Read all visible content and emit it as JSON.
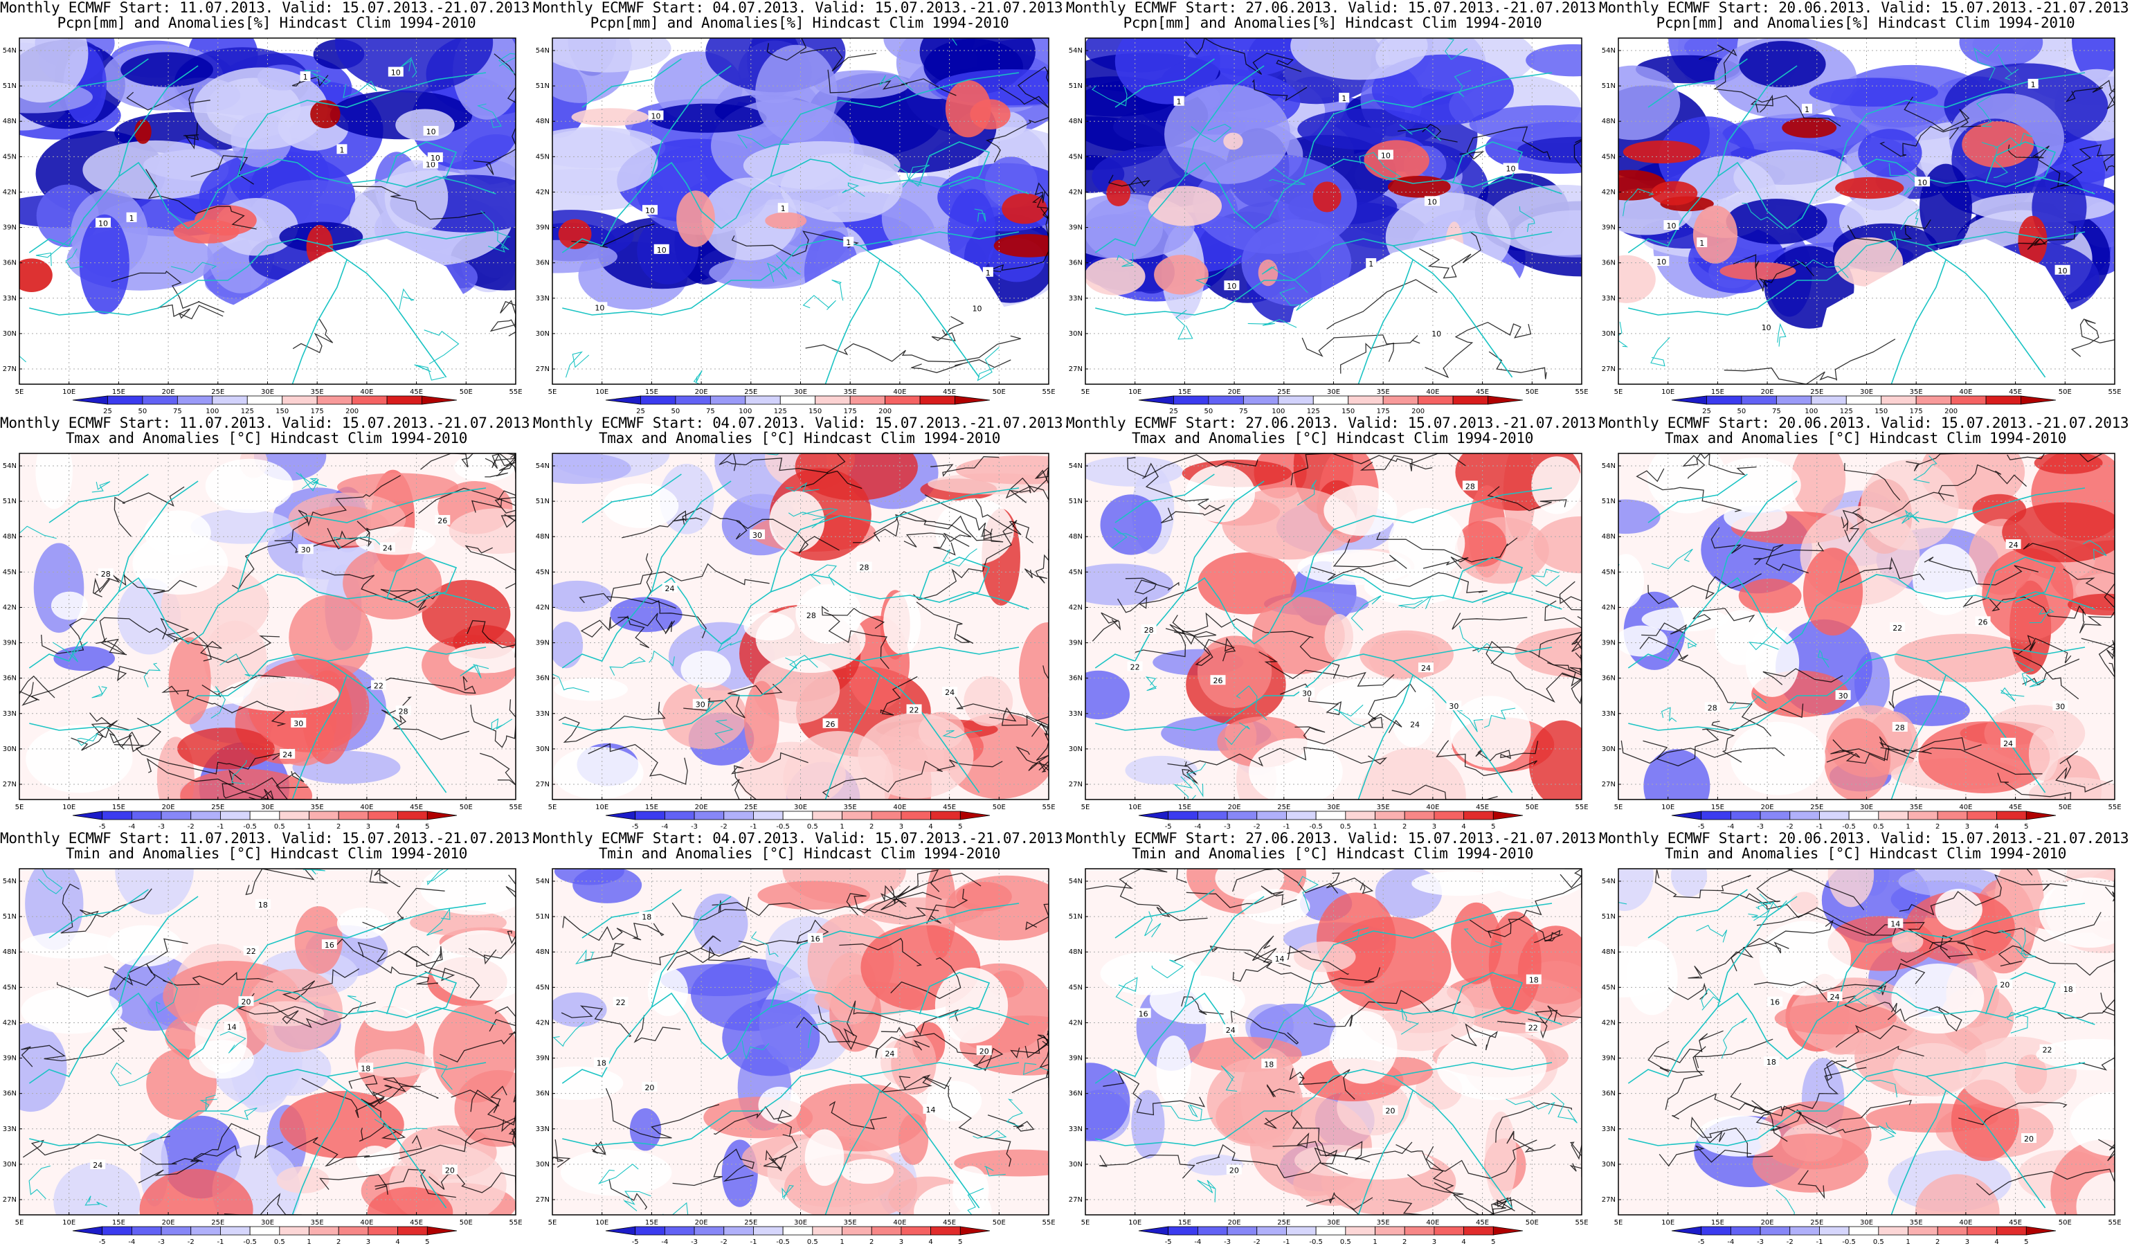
{
  "rows": [
    {
      "title2": "Pcpn[mm] and Anomalies[%] Hindcast Clim 1994-2010",
      "variable": "precip",
      "colorbar": {
        "labels": [
          "25",
          "50",
          "75",
          "100",
          "125",
          "150",
          "175",
          "200"
        ],
        "colors": [
          "#1c1cc8",
          "#3b3bef",
          "#6262f5",
          "#9a9af8",
          "#d2d2fc",
          "#ffffff",
          "#fcd2d2",
          "#f89a9a",
          "#f56262",
          "#d91c1c",
          "#b00000"
        ]
      }
    },
    {
      "title2": "Tmax and Anomalies [°C] Hindcast Clim 1994-2010",
      "variable": "tmax",
      "colorbar": {
        "labels": [
          "-5",
          "-4",
          "-3",
          "-2",
          "-1",
          "-0.5",
          "0.5",
          "1",
          "2",
          "3",
          "4",
          "5"
        ],
        "colors": [
          "#1c1cc8",
          "#3b3bef",
          "#6262f5",
          "#8787f7",
          "#b0b0fa",
          "#d6d6fc",
          "#ffffff",
          "#fcd6d6",
          "#fab0b0",
          "#f78787",
          "#f56262",
          "#e12c2c",
          "#b00000"
        ]
      }
    },
    {
      "title2": "Tmin and Anomalies [°C] Hindcast Clim 1994-2010",
      "variable": "tmin",
      "colorbar": {
        "labels": [
          "-5",
          "-4",
          "-3",
          "-2",
          "-1",
          "-0.5",
          "0.5",
          "1",
          "2",
          "3",
          "4",
          "5"
        ],
        "colors": [
          "#1c1cc8",
          "#3b3bef",
          "#6262f5",
          "#8787f7",
          "#b0b0fa",
          "#d6d6fc",
          "#ffffff",
          "#fcd6d6",
          "#fab0b0",
          "#f78787",
          "#f56262",
          "#e12c2c",
          "#b00000"
        ]
      }
    }
  ],
  "columns": [
    {
      "title1": "Monthly ECMWF Start: 11.07.2013. Valid: 15.07.2013.-21.07.2013."
    },
    {
      "title1": "Monthly ECMWF Start: 04.07.2013. Valid: 15.07.2013.-21.07.2013."
    },
    {
      "title1": "Monthly ECMWF Start: 27.06.2013. Valid: 15.07.2013.-21.07.2013."
    },
    {
      "title1": "Monthly ECMWF Start: 20.06.2013. Valid: 15.07.2013.-21.07.2013."
    }
  ],
  "axes": {
    "lat_labels": [
      "54N",
      "51N",
      "48N",
      "45N",
      "42N",
      "39N",
      "36N",
      "33N",
      "30N",
      "27N"
    ],
    "lon_labels": [
      "5E",
      "10E",
      "15E",
      "20E",
      "25E",
      "30E",
      "35E",
      "40E",
      "45E",
      "50E",
      "55E"
    ]
  },
  "contour_labels": {
    "precip": [
      "10",
      "10",
      "1",
      "10",
      "10",
      "1",
      "1",
      "10"
    ],
    "tmax": [
      "24",
      "28",
      "30",
      "24",
      "26",
      "28",
      "30",
      "22"
    ],
    "tmin": [
      "18",
      "16",
      "20",
      "22",
      "14",
      "18",
      "20",
      "24"
    ]
  },
  "colors": {
    "coastline": "#19c3c3",
    "contour": "#000000",
    "grid": "#aaaaaa"
  }
}
